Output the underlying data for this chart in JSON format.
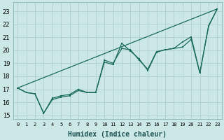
{
  "xlabel": "Humidex (Indice chaleur)",
  "bg_color": "#cce8e6",
  "grid_color": "#b0d0ce",
  "line_color": "#1a6b5a",
  "xlim": [
    -0.5,
    23.5
  ],
  "ylim": [
    14.7,
    23.7
  ],
  "yticks": [
    15,
    16,
    17,
    18,
    19,
    20,
    21,
    22,
    23
  ],
  "xticks": [
    0,
    1,
    2,
    3,
    4,
    5,
    6,
    7,
    8,
    9,
    10,
    11,
    12,
    13,
    14,
    15,
    16,
    17,
    18,
    19,
    20,
    21,
    22,
    23
  ],
  "line1_x": [
    0,
    1,
    2,
    3,
    4,
    5,
    6,
    7,
    8,
    9,
    10,
    11,
    12,
    13,
    14,
    15,
    16,
    17,
    18,
    19,
    20,
    21,
    22,
    23
  ],
  "line1_y": [
    17.1,
    16.75,
    16.65,
    15.15,
    16.3,
    16.5,
    16.6,
    17.0,
    16.75,
    16.75,
    19.25,
    19.0,
    20.15,
    20.05,
    19.25,
    18.55,
    19.9,
    20.05,
    20.15,
    20.25,
    20.85,
    18.25,
    21.9,
    23.2
  ],
  "line2_x": [
    0,
    1,
    2,
    3,
    4,
    5,
    6,
    7,
    8,
    9,
    10,
    11,
    12,
    13,
    14,
    15,
    16,
    17,
    18,
    19,
    20,
    21,
    22,
    23
  ],
  "line2_y": [
    17.1,
    16.75,
    16.65,
    15.15,
    16.2,
    16.4,
    16.5,
    16.9,
    16.75,
    16.75,
    19.1,
    18.9,
    20.55,
    19.95,
    19.35,
    18.45,
    19.85,
    20.05,
    20.15,
    20.65,
    21.05,
    18.25,
    21.85,
    23.2
  ],
  "line3_x": [
    0,
    23
  ],
  "line3_y": [
    17.1,
    23.2
  ]
}
